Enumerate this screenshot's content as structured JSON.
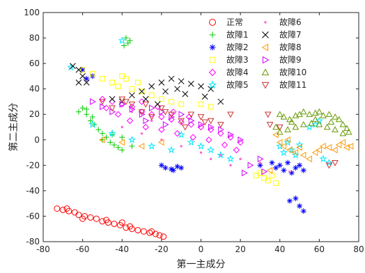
{
  "chart_data": {
    "type": "scatter",
    "xlabel": "第一主成分",
    "ylabel": "第二主成分",
    "xlim": [
      -80,
      80
    ],
    "ylim": [
      -80,
      100
    ],
    "xticks": [
      -80,
      -60,
      -40,
      -20,
      0,
      20,
      40,
      60,
      80
    ],
    "yticks": [
      -80,
      -60,
      -40,
      -20,
      0,
      20,
      40,
      60,
      80,
      100
    ],
    "grid": false,
    "legend_position": "top-right",
    "series": [
      {
        "name": "正常",
        "marker": "circle",
        "color": "#ff0000",
        "points": [
          [
            -73,
            -54
          ],
          [
            -70,
            -55
          ],
          [
            -67,
            -56
          ],
          [
            -64,
            -57
          ],
          [
            -62,
            -59
          ],
          [
            -59,
            -60
          ],
          [
            -56,
            -61
          ],
          [
            -53,
            -62
          ],
          [
            -50,
            -64
          ],
          [
            -47,
            -65
          ],
          [
            -44,
            -66
          ],
          [
            -41,
            -67
          ],
          [
            -38,
            -69
          ],
          [
            -35,
            -70
          ],
          [
            -32,
            -71
          ],
          [
            -29,
            -72
          ],
          [
            -26,
            -73
          ],
          [
            -23,
            -74
          ],
          [
            -21,
            -75
          ],
          [
            -19,
            -76
          ],
          [
            -60,
            -62
          ],
          [
            -48,
            -63
          ],
          [
            -36,
            -68
          ],
          [
            -25,
            -72
          ],
          [
            -40,
            -65
          ],
          [
            -68,
            -54
          ]
        ]
      },
      {
        "name": "故障1",
        "marker": "plus",
        "color": "#00cc00",
        "points": [
          [
            -38,
            80
          ],
          [
            -37,
            76
          ],
          [
            -36,
            78
          ],
          [
            -39,
            74
          ],
          [
            -60,
            25
          ],
          [
            -58,
            20
          ],
          [
            -56,
            15
          ],
          [
            -54,
            12
          ],
          [
            -52,
            8
          ],
          [
            -50,
            5
          ],
          [
            -48,
            2
          ],
          [
            -46,
            -2
          ],
          [
            -44,
            -4
          ],
          [
            -42,
            -6
          ],
          [
            -40,
            -8
          ],
          [
            -62,
            22
          ],
          [
            -55,
            18
          ],
          [
            -50,
            0
          ],
          [
            -45,
            4
          ],
          [
            -58,
            24
          ],
          [
            -40,
            2
          ],
          [
            -35,
            -5
          ]
        ]
      },
      {
        "name": "故障2",
        "marker": "asterisk",
        "color": "#0000ff",
        "points": [
          [
            -18,
            -22
          ],
          [
            -15,
            -23
          ],
          [
            -12,
            -21
          ],
          [
            -20,
            -20
          ],
          [
            -10,
            -22
          ],
          [
            -14,
            -24
          ],
          [
            40,
            -20
          ],
          [
            42,
            -24
          ],
          [
            44,
            -18
          ],
          [
            46,
            -26
          ],
          [
            48,
            -22
          ],
          [
            50,
            -20
          ],
          [
            52,
            -24
          ],
          [
            45,
            -48
          ],
          [
            48,
            -46
          ],
          [
            52,
            -56
          ],
          [
            50,
            -52
          ],
          [
            36,
            -18
          ],
          [
            38,
            -22
          ],
          [
            30,
            -20
          ],
          [
            -60,
            55
          ],
          [
            -58,
            48
          ],
          [
            -55,
            50
          ]
        ]
      },
      {
        "name": "故障3",
        "marker": "square",
        "color": "#ffff00",
        "points": [
          [
            -60,
            55
          ],
          [
            -55,
            52
          ],
          [
            -50,
            48
          ],
          [
            -45,
            45
          ],
          [
            -40,
            50
          ],
          [
            -35,
            40
          ],
          [
            -30,
            38
          ],
          [
            -25,
            35
          ],
          [
            -20,
            32
          ],
          [
            -15,
            30
          ],
          [
            -10,
            28
          ],
          [
            0,
            28
          ],
          [
            5,
            26
          ],
          [
            30,
            -26
          ],
          [
            32,
            -30
          ],
          [
            34,
            -32
          ],
          [
            36,
            -28
          ],
          [
            38,
            -34
          ],
          [
            28,
            -28
          ],
          [
            -38,
            48
          ],
          [
            -32,
            45
          ],
          [
            -42,
            42
          ]
        ]
      },
      {
        "name": "故障4",
        "marker": "diamond",
        "color": "#ff00ff",
        "points": [
          [
            -50,
            32
          ],
          [
            -45,
            30
          ],
          [
            -40,
            28
          ],
          [
            -35,
            26
          ],
          [
            -30,
            22
          ],
          [
            -25,
            20
          ],
          [
            -20,
            18
          ],
          [
            -15,
            16
          ],
          [
            -10,
            14
          ],
          [
            -5,
            12
          ],
          [
            0,
            10
          ],
          [
            5,
            8
          ],
          [
            10,
            5
          ],
          [
            15,
            2
          ],
          [
            20,
            -2
          ],
          [
            -48,
            25
          ],
          [
            -42,
            20
          ],
          [
            -36,
            15
          ],
          [
            -28,
            10
          ],
          [
            -20,
            8
          ],
          [
            -12,
            5
          ],
          [
            -4,
            2
          ],
          [
            4,
            0
          ],
          [
            12,
            -4
          ],
          [
            18,
            -8
          ],
          [
            -30,
            30
          ],
          [
            -22,
            26
          ],
          [
            -14,
            22
          ],
          [
            -6,
            18
          ]
        ]
      },
      {
        "name": "故障5",
        "marker": "star",
        "color": "#00e5ff",
        "points": [
          [
            -40,
            78
          ],
          [
            -66,
            57
          ],
          [
            -10,
            4
          ],
          [
            -5,
            -2
          ],
          [
            0,
            -5
          ],
          [
            5,
            -8
          ],
          [
            10,
            -12
          ],
          [
            15,
            -15
          ],
          [
            40,
            -5
          ],
          [
            42,
            -10
          ],
          [
            44,
            -2
          ],
          [
            46,
            -8
          ],
          [
            48,
            -12
          ],
          [
            50,
            -4
          ],
          [
            55,
            10
          ],
          [
            58,
            12
          ],
          [
            60,
            15
          ],
          [
            62,
            -15
          ],
          [
            65,
            -18
          ],
          [
            -55,
            12
          ],
          [
            -45,
            5
          ],
          [
            -35,
            0
          ],
          [
            -25,
            -5
          ],
          [
            -15,
            -8
          ]
        ]
      },
      {
        "name": "故障6",
        "marker": "dot",
        "color": "#ff66cc",
        "points": [
          [
            -40,
            10
          ],
          [
            -30,
            5
          ],
          [
            -20,
            0
          ],
          [
            -10,
            -5
          ],
          [
            0,
            -10
          ],
          [
            10,
            -12
          ],
          [
            20,
            -15
          ],
          [
            30,
            -18
          ],
          [
            45,
            -25
          ],
          [
            -35,
            22
          ],
          [
            -25,
            15
          ],
          [
            5,
            -15
          ],
          [
            15,
            -20
          ]
        ]
      },
      {
        "name": "故障7",
        "marker": "x",
        "color": "#000000",
        "points": [
          [
            -65,
            58
          ],
          [
            -62,
            55
          ],
          [
            -60,
            50
          ],
          [
            -58,
            45
          ],
          [
            -20,
            45
          ],
          [
            -15,
            48
          ],
          [
            -10,
            46
          ],
          [
            -5,
            44
          ],
          [
            0,
            42
          ],
          [
            5,
            40
          ],
          [
            -25,
            42
          ],
          [
            -30,
            38
          ],
          [
            -35,
            35
          ],
          [
            -40,
            30
          ],
          [
            -45,
            32
          ],
          [
            -18,
            38
          ],
          [
            -8,
            36
          ],
          [
            2,
            34
          ],
          [
            10,
            30
          ],
          [
            -12,
            40
          ],
          [
            -28,
            32
          ],
          [
            -22,
            28
          ],
          [
            -62,
            45
          ]
        ]
      },
      {
        "name": "故障8",
        "marker": "triangle-left",
        "color": "#ff9900",
        "points": [
          [
            42,
            -5
          ],
          [
            45,
            -8
          ],
          [
            48,
            -10
          ],
          [
            52,
            -12
          ],
          [
            55,
            -15
          ],
          [
            58,
            -10
          ],
          [
            60,
            -8
          ],
          [
            62,
            -5
          ],
          [
            65,
            -6
          ],
          [
            68,
            -8
          ],
          [
            70,
            -4
          ],
          [
            72,
            -2
          ],
          [
            74,
            -6
          ],
          [
            76,
            -5
          ],
          [
            40,
            -2
          ],
          [
            44,
            0
          ],
          [
            38,
            4
          ],
          [
            50,
            -6
          ],
          [
            35,
            -24
          ],
          [
            -50,
            0
          ],
          [
            -40,
            -2
          ],
          [
            -30,
            -5
          ],
          [
            -20,
            -2
          ]
        ]
      },
      {
        "name": "故障9",
        "marker": "triangle-right",
        "color": "#cc00ff",
        "points": [
          [
            -55,
            30
          ],
          [
            -50,
            26
          ],
          [
            -45,
            22
          ],
          [
            -40,
            28
          ],
          [
            -35,
            24
          ],
          [
            -30,
            20
          ],
          [
            -25,
            25
          ],
          [
            -20,
            22
          ],
          [
            -15,
            18
          ],
          [
            -10,
            20
          ],
          [
            -5,
            15
          ],
          [
            0,
            12
          ],
          [
            5,
            10
          ],
          [
            10,
            8
          ],
          [
            15,
            4
          ],
          [
            20,
            0
          ],
          [
            22,
            -26
          ],
          [
            25,
            -20
          ],
          [
            30,
            -15
          ],
          [
            32,
            -25
          ],
          [
            -28,
            15
          ],
          [
            -18,
            12
          ]
        ]
      },
      {
        "name": "故障10",
        "marker": "triangle-up",
        "color": "#669900",
        "points": [
          [
            40,
            20
          ],
          [
            42,
            18
          ],
          [
            45,
            16
          ],
          [
            48,
            19
          ],
          [
            50,
            20
          ],
          [
            52,
            22
          ],
          [
            55,
            20
          ],
          [
            58,
            21
          ],
          [
            60,
            22
          ],
          [
            62,
            19
          ],
          [
            65,
            20
          ],
          [
            68,
            18
          ],
          [
            70,
            16
          ],
          [
            72,
            12
          ],
          [
            74,
            9
          ],
          [
            75,
            6
          ],
          [
            72,
            5
          ],
          [
            68,
            8
          ],
          [
            64,
            10
          ],
          [
            60,
            12
          ],
          [
            56,
            13
          ],
          [
            52,
            12
          ],
          [
            48,
            10
          ],
          [
            44,
            8
          ],
          [
            40,
            6
          ],
          [
            38,
            10
          ],
          [
            46,
            14
          ],
          [
            58,
            16
          ],
          [
            66,
            14
          ]
        ]
      },
      {
        "name": "故障11",
        "marker": "triangle-down",
        "color": "#cc3333",
        "points": [
          [
            -50,
            30
          ],
          [
            -45,
            25
          ],
          [
            -40,
            32
          ],
          [
            -35,
            28
          ],
          [
            -30,
            22
          ],
          [
            -25,
            18
          ],
          [
            -20,
            25
          ],
          [
            -15,
            20
          ],
          [
            -10,
            15
          ],
          [
            -5,
            20
          ],
          [
            0,
            18
          ],
          [
            5,
            15
          ],
          [
            10,
            12
          ],
          [
            15,
            20
          ],
          [
            35,
            12
          ],
          [
            40,
            10
          ],
          [
            65,
            -20
          ],
          [
            68,
            -18
          ],
          [
            -38,
            30
          ],
          [
            -28,
            28
          ],
          [
            -18,
            22
          ],
          [
            -8,
            10
          ],
          [
            2,
            14
          ],
          [
            34,
            20
          ]
        ]
      }
    ]
  }
}
